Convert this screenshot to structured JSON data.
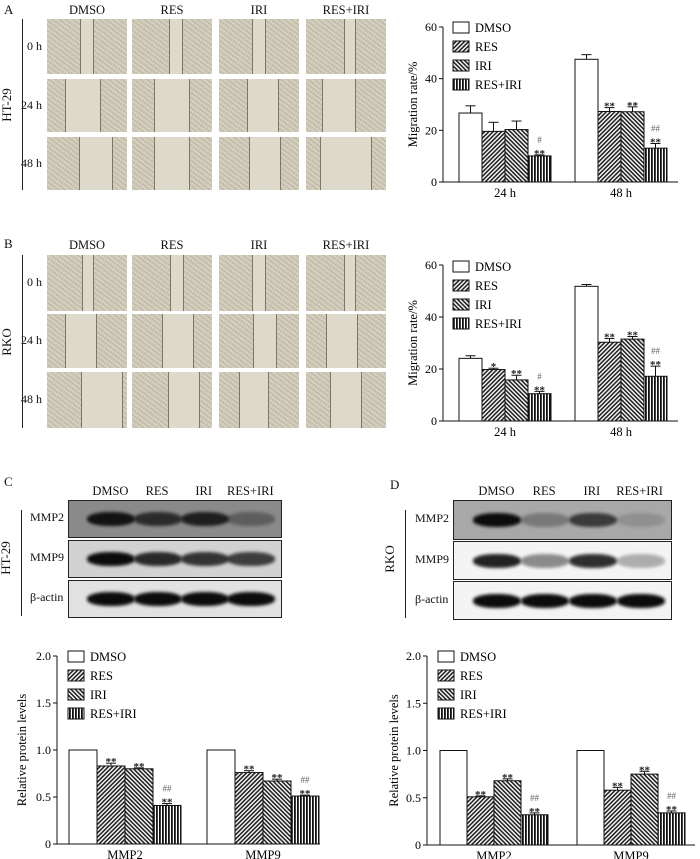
{
  "panels": {
    "A": {
      "letter": "A",
      "cell_line": "HT-29",
      "columns": [
        "DMSO",
        "RES",
        "IRI",
        "RES+IRI"
      ],
      "rows": [
        "0 h",
        "24 h",
        "48 h"
      ]
    },
    "B": {
      "letter": "B",
      "cell_line": "RKO",
      "columns": [
        "DMSO",
        "RES",
        "IRI",
        "RES+IRI"
      ],
      "rows": [
        "0 h",
        "24 h",
        "48 h"
      ]
    },
    "C": {
      "letter": "C",
      "cell_line": "HT-29",
      "columns": [
        "DMSO",
        "RES",
        "IRI",
        "RES+IRI"
      ],
      "proteins": [
        "MMP2",
        "MMP9",
        "β-actin"
      ]
    },
    "D": {
      "letter": "D",
      "cell_line": "RKO",
      "columns": [
        "DMSO",
        "RES",
        "IRI",
        "RES+IRI"
      ],
      "proteins": [
        "MMP2",
        "MMP9",
        "β-actin"
      ]
    }
  },
  "colors": {
    "bar_outline": "#111111",
    "bar_fill_dmso": "#ffffff",
    "hatch": "#222222",
    "annotation": "#333333"
  },
  "chart_data": [
    {
      "panel": "A",
      "type": "bar",
      "ylabel": "Migration rate/%",
      "xlabel": "",
      "ylim": [
        0,
        60
      ],
      "yticks": [
        0,
        20,
        40,
        60
      ],
      "categories": [
        "24 h",
        "48 h"
      ],
      "legend": "top-left",
      "grid": false,
      "series": [
        {
          "name": "DMSO",
          "pattern": "open",
          "values": [
            26.7,
            47.5
          ],
          "errors": [
            2.8,
            1.8
          ],
          "annotations": [
            [],
            []
          ]
        },
        {
          "name": "RES",
          "pattern": "diagonal-right",
          "values": [
            19.6,
            27.3
          ],
          "errors": [
            3.5,
            1.5
          ],
          "annotations": [
            [],
            [
              "**"
            ]
          ]
        },
        {
          "name": "IRI",
          "pattern": "diagonal-left",
          "values": [
            20.3,
            27.2
          ],
          "errors": [
            3.3,
            1.9
          ],
          "annotations": [
            [],
            [
              "**"
            ]
          ]
        },
        {
          "name": "RES+IRI",
          "pattern": "vertical",
          "values": [
            10.1,
            13.1
          ],
          "errors": [
            0.4,
            1.8
          ],
          "annotations": [
            [
              "#",
              "**"
            ],
            [
              "##",
              "**"
            ]
          ]
        }
      ]
    },
    {
      "panel": "B",
      "type": "bar",
      "ylabel": "Migration rate/%",
      "xlabel": "",
      "ylim": [
        0,
        60
      ],
      "yticks": [
        0,
        20,
        40,
        60
      ],
      "categories": [
        "24 h",
        "48 h"
      ],
      "legend": "top-left",
      "grid": false,
      "series": [
        {
          "name": "DMSO",
          "pattern": "open",
          "values": [
            24.1,
            51.8
          ],
          "errors": [
            1.0,
            0.7
          ],
          "annotations": [
            [],
            []
          ]
        },
        {
          "name": "RES",
          "pattern": "diagonal-right",
          "values": [
            19.8,
            30.3
          ],
          "errors": [
            0.5,
            1.4
          ],
          "annotations": [
            [
              "*"
            ],
            [
              "**"
            ]
          ]
        },
        {
          "name": "IRI",
          "pattern": "diagonal-left",
          "values": [
            15.8,
            31.5
          ],
          "errors": [
            1.8,
            1.0
          ],
          "annotations": [
            [
              "**"
            ],
            [
              "**"
            ]
          ]
        },
        {
          "name": "RES+IRI",
          "pattern": "vertical",
          "values": [
            10.5,
            17.2
          ],
          "errors": [
            0.9,
            3.9
          ],
          "annotations": [
            [
              "#",
              "**"
            ],
            [
              "##",
              "**"
            ]
          ]
        }
      ]
    },
    {
      "panel": "C",
      "type": "bar",
      "ylabel": "Relative protein levels",
      "xlabel": "",
      "ylim": [
        0,
        2.0
      ],
      "yticks": [
        "0",
        "0.5",
        "1.0",
        "1.5",
        "2.0"
      ],
      "categories": [
        "MMP2",
        "MMP9"
      ],
      "legend": "top-left",
      "grid": false,
      "series": [
        {
          "name": "DMSO",
          "pattern": "open",
          "values": [
            1.0,
            1.0
          ],
          "errors": [
            0,
            0
          ],
          "annotations": [
            [],
            []
          ]
        },
        {
          "name": "RES",
          "pattern": "diagonal-right",
          "values": [
            0.83,
            0.76
          ],
          "errors": [
            0.03,
            0.02
          ],
          "annotations": [
            [
              "**"
            ],
            [
              "**"
            ]
          ]
        },
        {
          "name": "IRI",
          "pattern": "diagonal-left",
          "values": [
            0.8,
            0.67
          ],
          "errors": [
            0.01,
            0.02
          ],
          "annotations": [
            [
              "**"
            ],
            [
              "**"
            ]
          ]
        },
        {
          "name": "RES+IRI",
          "pattern": "vertical",
          "values": [
            0.41,
            0.51
          ],
          "errors": [
            0.02,
            0.01
          ],
          "annotations": [
            [
              "##",
              "**"
            ],
            [
              "##",
              "**"
            ]
          ]
        }
      ]
    },
    {
      "panel": "D",
      "type": "bar",
      "ylabel": "Relative protein levels",
      "xlabel": "",
      "ylim": [
        0,
        2.0
      ],
      "yticks": [
        "0",
        "0.5",
        "1.0",
        "1.5",
        "2.0"
      ],
      "categories": [
        "MMP2",
        "MMP9"
      ],
      "legend": "top-left",
      "grid": false,
      "series": [
        {
          "name": "DMSO",
          "pattern": "open",
          "values": [
            1.0,
            1.0
          ],
          "errors": [
            0,
            0
          ],
          "annotations": [
            [],
            []
          ]
        },
        {
          "name": "RES",
          "pattern": "diagonal-right",
          "values": [
            0.51,
            0.58
          ],
          "errors": [
            0.01,
            0.03
          ],
          "annotations": [
            [
              "**"
            ],
            [
              "**"
            ]
          ]
        },
        {
          "name": "IRI",
          "pattern": "diagonal-left",
          "values": [
            0.68,
            0.75
          ],
          "errors": [
            0.02,
            0.03
          ],
          "annotations": [
            [
              "**"
            ],
            [
              "**"
            ]
          ]
        },
        {
          "name": "RES+IRI",
          "pattern": "vertical",
          "values": [
            0.32,
            0.34
          ],
          "errors": [
            0.02,
            0.02
          ],
          "annotations": [
            [
              "##",
              "**"
            ],
            [
              "##",
              "**"
            ]
          ]
        }
      ]
    }
  ]
}
